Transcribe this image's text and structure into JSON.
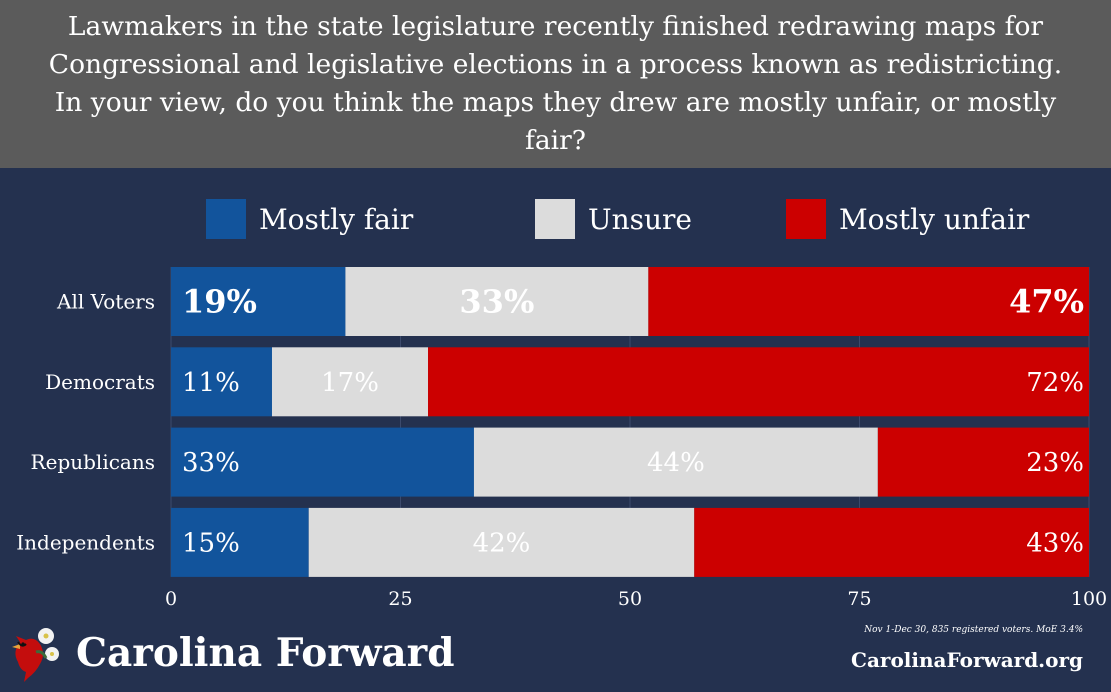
{
  "header": {
    "title": "Lawmakers in the state legislature recently finished redrawing maps for Congressional and legislative elections in a process known as redistricting. In your view, do you think the maps they drew are mostly unfair, or mostly fair?"
  },
  "legend": [
    {
      "label": "Mostly fair",
      "color": "#12549c"
    },
    {
      "label": "Unsure",
      "color": "#dcdcdc"
    },
    {
      "label": "Mostly unfair",
      "color": "#cc0000"
    }
  ],
  "chart_data": {
    "type": "bar",
    "orientation": "horizontal",
    "stacked": true,
    "categories": [
      "All Voters",
      "Democrats",
      "Republicans",
      "Independents"
    ],
    "series": [
      {
        "name": "Mostly fair",
        "values": [
          19,
          11,
          33,
          15
        ],
        "labels": [
          "19%",
          "11%",
          "33%",
          "15%"
        ],
        "color": "#12549c"
      },
      {
        "name": "Unsure",
        "values": [
          33,
          17,
          44,
          42
        ],
        "labels": [
          "33%",
          "17%",
          "44%",
          "42%"
        ],
        "color": "#dcdcdc"
      },
      {
        "name": "Mostly unfair",
        "values": [
          47,
          72,
          23,
          43
        ],
        "labels": [
          "47%",
          "72%",
          "23%",
          "43%"
        ],
        "color": "#cc0000"
      }
    ],
    "xlim": [
      0,
      100
    ],
    "xticks": [
      0,
      25,
      50,
      75,
      100
    ],
    "xtick_labels": [
      "0",
      "25",
      "50",
      "75",
      "100"
    ],
    "grid": true,
    "legend_position": "top",
    "highlight_row": "All Voters"
  },
  "footer": {
    "brand": "Carolina Forward",
    "note": "Nov 1-Dec 30, 835 registered voters. MoE 3.4%",
    "website": "CarolinaForward.org"
  }
}
